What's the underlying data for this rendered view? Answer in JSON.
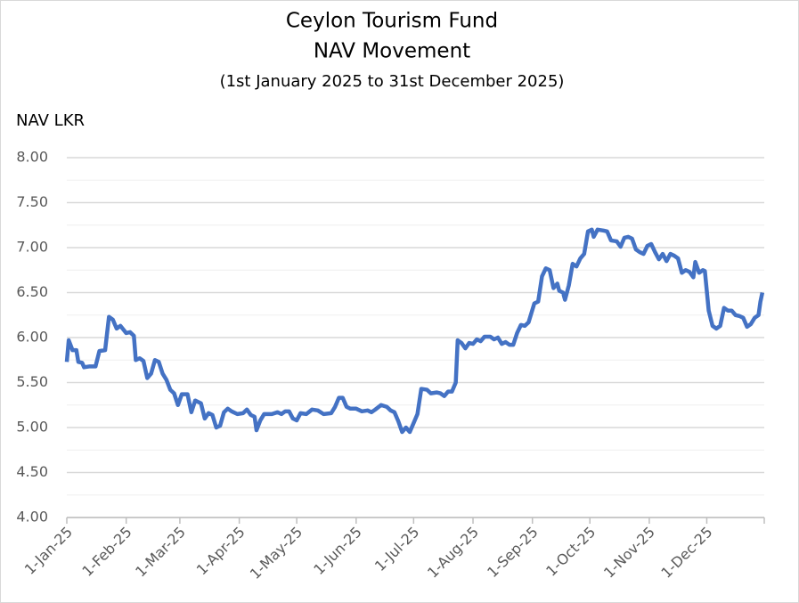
{
  "chart_data": {
    "type": "line",
    "title": [
      "Ceylon Tourism Fund",
      "NAV Movement"
    ],
    "subtitle": "(1st January 2025 to 31st December 2025)",
    "y_label": "NAV LKR",
    "x": [
      "2025-01-01",
      "2025-01-02",
      "2025-01-04",
      "2025-01-06",
      "2025-01-07",
      "2025-01-09",
      "2025-01-10",
      "2025-01-13",
      "2025-01-16",
      "2025-01-18",
      "2025-01-21",
      "2025-01-23",
      "2025-01-25",
      "2025-01-27",
      "2025-01-29",
      "2025-02-01",
      "2025-02-03",
      "2025-02-05",
      "2025-02-06",
      "2025-02-08",
      "2025-02-10",
      "2025-02-12",
      "2025-02-14",
      "2025-02-16",
      "2025-02-18",
      "2025-02-20",
      "2025-02-22",
      "2025-02-24",
      "2025-02-26",
      "2025-02-28",
      "2025-03-02",
      "2025-03-05",
      "2025-03-07",
      "2025-03-09",
      "2025-03-12",
      "2025-03-14",
      "2025-03-16",
      "2025-03-18",
      "2025-03-20",
      "2025-03-22",
      "2025-03-24",
      "2025-03-26",
      "2025-03-28",
      "2025-03-31",
      "2025-04-03",
      "2025-04-05",
      "2025-04-07",
      "2025-04-09",
      "2025-04-10",
      "2025-04-12",
      "2025-04-14",
      "2025-04-18",
      "2025-04-21",
      "2025-04-23",
      "2025-04-25",
      "2025-04-27",
      "2025-04-29",
      "2025-05-01",
      "2025-05-03",
      "2025-05-06",
      "2025-05-09",
      "2025-05-12",
      "2025-05-15",
      "2025-05-19",
      "2025-05-21",
      "2025-05-23",
      "2025-05-25",
      "2025-05-27",
      "2025-05-29",
      "2025-06-01",
      "2025-06-04",
      "2025-06-07",
      "2025-06-09",
      "2025-06-11",
      "2025-06-14",
      "2025-06-17",
      "2025-06-19",
      "2025-06-21",
      "2025-06-23",
      "2025-06-25",
      "2025-06-27",
      "2025-06-29",
      "2025-07-01",
      "2025-07-03",
      "2025-07-05",
      "2025-07-08",
      "2025-07-10",
      "2025-07-13",
      "2025-07-15",
      "2025-07-17",
      "2025-07-19",
      "2025-07-21",
      "2025-07-23",
      "2025-07-24",
      "2025-07-26",
      "2025-07-28",
      "2025-07-30",
      "2025-08-01",
      "2025-08-03",
      "2025-08-05",
      "2025-08-07",
      "2025-08-10",
      "2025-08-12",
      "2025-08-14",
      "2025-08-16",
      "2025-08-18",
      "2025-08-20",
      "2025-08-22",
      "2025-08-24",
      "2025-08-26",
      "2025-08-28",
      "2025-08-30",
      "2025-09-02",
      "2025-09-04",
      "2025-09-06",
      "2025-09-08",
      "2025-09-10",
      "2025-09-12",
      "2025-09-14",
      "2025-09-15",
      "2025-09-17",
      "2025-09-18",
      "2025-09-20",
      "2025-09-22",
      "2025-09-24",
      "2025-09-26",
      "2025-09-28",
      "2025-09-30",
      "2025-10-02",
      "2025-10-03",
      "2025-10-05",
      "2025-10-08",
      "2025-10-10",
      "2025-10-12",
      "2025-10-15",
      "2025-10-17",
      "2025-10-19",
      "2025-10-21",
      "2025-10-23",
      "2025-10-25",
      "2025-10-27",
      "2025-10-29",
      "2025-10-31",
      "2025-11-02",
      "2025-11-04",
      "2025-11-06",
      "2025-11-08",
      "2025-11-10",
      "2025-11-12",
      "2025-11-14",
      "2025-11-16",
      "2025-11-18",
      "2025-11-20",
      "2025-11-22",
      "2025-11-24",
      "2025-11-25",
      "2025-11-27",
      "2025-11-29",
      "2025-11-30",
      "2025-12-02",
      "2025-12-04",
      "2025-12-06",
      "2025-12-08",
      "2025-12-10",
      "2025-12-12",
      "2025-12-14",
      "2025-12-16",
      "2025-12-18",
      "2025-12-20",
      "2025-12-22",
      "2025-12-24",
      "2025-12-26",
      "2025-12-28",
      "2025-12-29",
      "2025-12-30"
    ],
    "series": [
      {
        "name": "NAV",
        "color": "#4472c4",
        "values": [
          5.73,
          5.97,
          5.86,
          5.86,
          5.73,
          5.72,
          5.67,
          5.68,
          5.68,
          5.85,
          5.86,
          6.23,
          6.2,
          6.1,
          6.13,
          6.05,
          6.06,
          6.02,
          5.75,
          5.77,
          5.74,
          5.55,
          5.6,
          5.75,
          5.73,
          5.6,
          5.53,
          5.42,
          5.38,
          5.25,
          5.37,
          5.37,
          5.17,
          5.3,
          5.27,
          5.1,
          5.16,
          5.14,
          5.0,
          5.02,
          5.17,
          5.21,
          5.18,
          5.15,
          5.16,
          5.2,
          5.14,
          5.12,
          4.97,
          5.08,
          5.15,
          5.15,
          5.17,
          5.15,
          5.18,
          5.18,
          5.1,
          5.08,
          5.16,
          5.15,
          5.2,
          5.19,
          5.15,
          5.16,
          5.23,
          5.33,
          5.33,
          5.23,
          5.21,
          5.21,
          5.18,
          5.19,
          5.17,
          5.2,
          5.25,
          5.23,
          5.19,
          5.17,
          5.07,
          4.95,
          5.0,
          4.95,
          5.05,
          5.15,
          5.43,
          5.42,
          5.38,
          5.39,
          5.38,
          5.35,
          5.4,
          5.4,
          5.5,
          5.97,
          5.94,
          5.88,
          5.94,
          5.93,
          5.98,
          5.96,
          6.01,
          6.01,
          5.98,
          6.0,
          5.93,
          5.95,
          5.92,
          5.92,
          6.05,
          6.14,
          6.13,
          6.17,
          6.38,
          6.4,
          6.68,
          6.77,
          6.75,
          6.55,
          6.6,
          6.52,
          6.5,
          6.42,
          6.58,
          6.82,
          6.79,
          6.88,
          6.93,
          7.18,
          7.2,
          7.12,
          7.2,
          7.19,
          7.18,
          7.08,
          7.07,
          7.01,
          7.11,
          7.12,
          7.1,
          6.98,
          6.95,
          6.93,
          7.02,
          7.04,
          6.95,
          6.87,
          6.93,
          6.85,
          6.93,
          6.91,
          6.88,
          6.72,
          6.75,
          6.73,
          6.67,
          6.84,
          6.72,
          6.75,
          6.74,
          6.3,
          6.13,
          6.1,
          6.13,
          6.33,
          6.3,
          6.3,
          6.25,
          6.24,
          6.22,
          6.12,
          6.15,
          6.22,
          6.25,
          6.4,
          6.5
        ]
      }
    ],
    "xlim": [
      "2025-01-01",
      "2025-12-31"
    ],
    "xticks": [
      {
        "value": "2025-01-01",
        "label": "1-Jan-25"
      },
      {
        "value": "2025-02-01",
        "label": "1-Feb-25"
      },
      {
        "value": "2025-03-01",
        "label": "1-Mar-25"
      },
      {
        "value": "2025-04-01",
        "label": "1-Apr-25"
      },
      {
        "value": "2025-05-01",
        "label": "1-May-25"
      },
      {
        "value": "2025-06-01",
        "label": "1-Jun-25"
      },
      {
        "value": "2025-07-01",
        "label": "1-Jul-25"
      },
      {
        "value": "2025-08-01",
        "label": "1-Aug-25"
      },
      {
        "value": "2025-09-01",
        "label": "1-Sep-25"
      },
      {
        "value": "2025-10-01",
        "label": "1-Oct-25"
      },
      {
        "value": "2025-11-01",
        "label": "1-Nov-25"
      },
      {
        "value": "2025-12-01",
        "label": "1-Dec-25"
      }
    ],
    "ylim": [
      4,
      8
    ],
    "yticks": [
      {
        "value": 4,
        "label": "4.00"
      },
      {
        "value": 4.5,
        "label": "4.50"
      },
      {
        "value": 5,
        "label": "5.00"
      },
      {
        "value": 5.5,
        "label": "5.50"
      },
      {
        "value": 6,
        "label": "6.00"
      },
      {
        "value": 6.5,
        "label": "6.50"
      },
      {
        "value": 7,
        "label": "7.00"
      },
      {
        "value": 7.5,
        "label": "7.50"
      },
      {
        "value": 8,
        "label": "8.00"
      }
    ],
    "minor_grid": true,
    "grid": true
  }
}
